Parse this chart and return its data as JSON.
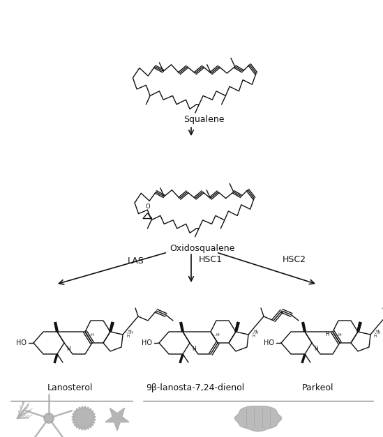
{
  "background_color": "#ffffff",
  "text_color": "#111111",
  "squalene_label": "Squalene",
  "oxidosqualene_label": "Oxidosqualene",
  "enzyme_labels": [
    "LAS",
    "HSC1",
    "HSC2"
  ],
  "product_labels": [
    "Lanosterol",
    "9β-lanosta-7,24-dienol",
    "Parkeol"
  ],
  "arrow_color": "#111111",
  "line_color": "#111111",
  "lw": 1.0,
  "figsize": [
    5.49,
    6.27
  ],
  "dpi": 100
}
